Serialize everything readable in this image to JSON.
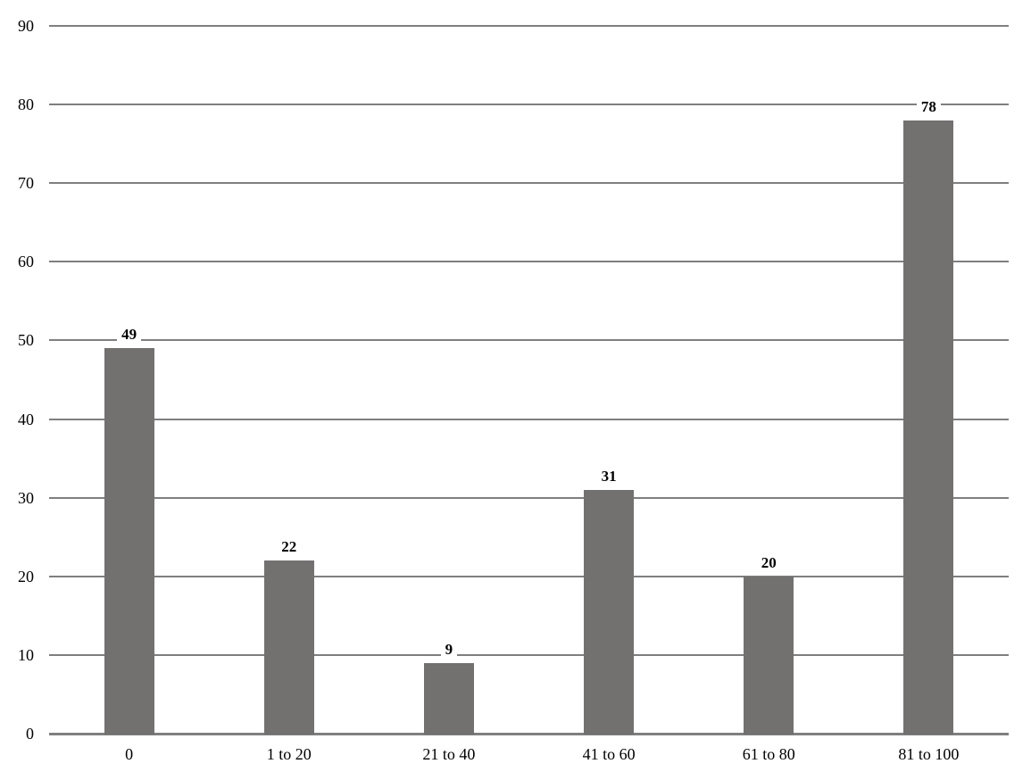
{
  "chart_data": {
    "type": "bar",
    "title": "",
    "xlabel": "",
    "ylabel": "",
    "categories": [
      "0",
      "1 to 20",
      "21 to 40",
      "41 to 60",
      "61 to 80",
      "81 to 100"
    ],
    "values": [
      49,
      22,
      9,
      31,
      20,
      78
    ],
    "data_labels": [
      "49",
      "22",
      "9",
      "31",
      "20",
      "78"
    ],
    "ylim": [
      0,
      90
    ],
    "ytick_step": 10,
    "yticks": [
      "0",
      "10",
      "20",
      "30",
      "40",
      "50",
      "60",
      "70",
      "80",
      "90"
    ],
    "grid": true,
    "legend": false,
    "colors": {
      "bar": "#737070",
      "gridline": "#7f7f7f",
      "axis_line": "#7f7f7f",
      "label_text": "#000000",
      "value_label_background": "#ffffff",
      "page_background": "#ffffff"
    }
  }
}
